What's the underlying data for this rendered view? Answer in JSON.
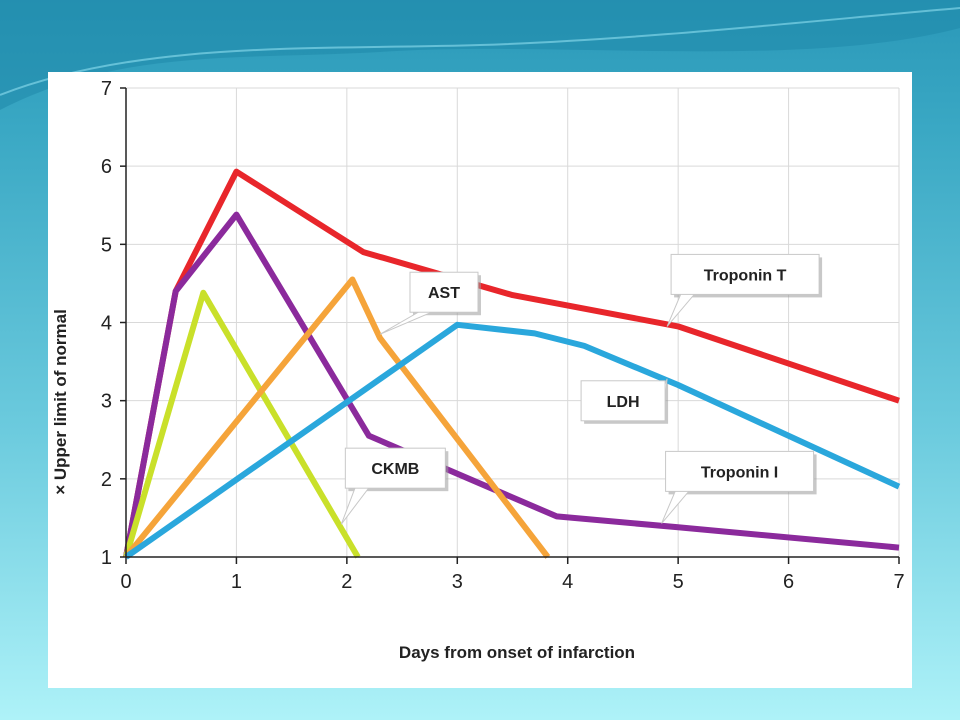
{
  "slide": {
    "background_colors": [
      "#2a98b8",
      "#aef2f8"
    ]
  },
  "chart_data": {
    "type": "line",
    "xlabel": "Days from onset of infarction",
    "ylabel": "× Upper limit of normal",
    "xlim": [
      0,
      7
    ],
    "ylim": [
      1,
      7
    ],
    "xticks": [
      0,
      1,
      2,
      3,
      4,
      5,
      6,
      7
    ],
    "yticks": [
      1,
      2,
      3,
      4,
      5,
      6,
      7
    ],
    "grid": true,
    "series": [
      {
        "name": "Troponin T",
        "color": "#e8262b",
        "x": [
          0,
          0.45,
          1,
          2.15,
          3.5,
          5,
          7
        ],
        "y": [
          1,
          4.4,
          5.93,
          4.9,
          4.35,
          3.95,
          3.0
        ]
      },
      {
        "name": "Troponin I",
        "color": "#8b2a9c",
        "x": [
          0,
          0.45,
          1,
          2.2,
          3.9,
          5,
          7
        ],
        "y": [
          1,
          4.4,
          5.38,
          2.55,
          1.52,
          1.38,
          1.12
        ]
      },
      {
        "name": "CKMB",
        "color": "#c9e02a",
        "x": [
          0,
          0.7,
          2.1
        ],
        "y": [
          1,
          4.38,
          1.0
        ]
      },
      {
        "name": "AST",
        "color": "#f5a43a",
        "x": [
          0,
          2.05,
          2.3,
          3.82
        ],
        "y": [
          1,
          4.55,
          3.8,
          1.0
        ]
      },
      {
        "name": "LDH",
        "color": "#2aa7dc",
        "x": [
          0,
          3.0,
          3.7,
          4.15,
          5.0,
          7
        ],
        "y": [
          1,
          3.97,
          3.86,
          3.7,
          3.2,
          1.9
        ]
      }
    ],
    "callouts": [
      {
        "label": "AST",
        "series": "AST",
        "anchor_x": 2.3,
        "anchor_y": 3.85
      },
      {
        "label": "Troponin T",
        "series": "Troponin T",
        "anchor_x": 4.9,
        "anchor_y": 3.95
      },
      {
        "label": "LDH",
        "series": "LDH",
        "anchor_x": 4.9,
        "anchor_y": 3.28
      },
      {
        "label": "CKMB",
        "series": "CKMB",
        "anchor_x": 1.95,
        "anchor_y": 1.42
      },
      {
        "label": "Troponin I",
        "series": "Troponin I",
        "anchor_x": 4.85,
        "anchor_y": 1.43
      }
    ]
  }
}
